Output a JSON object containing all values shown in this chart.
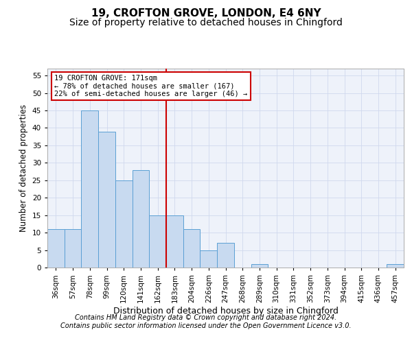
{
  "title1": "19, CROFTON GROVE, LONDON, E4 6NY",
  "title2": "Size of property relative to detached houses in Chingford",
  "xlabel": "Distribution of detached houses by size in Chingford",
  "ylabel": "Number of detached properties",
  "categories": [
    "36sqm",
    "57sqm",
    "78sqm",
    "99sqm",
    "120sqm",
    "141sqm",
    "162sqm",
    "183sqm",
    "204sqm",
    "226sqm",
    "247sqm",
    "268sqm",
    "289sqm",
    "310sqm",
    "331sqm",
    "352sqm",
    "373sqm",
    "394sqm",
    "415sqm",
    "436sqm",
    "457sqm"
  ],
  "values": [
    11,
    11,
    45,
    39,
    25,
    28,
    15,
    15,
    11,
    5,
    7,
    0,
    1,
    0,
    0,
    0,
    0,
    0,
    0,
    0,
    1
  ],
  "bar_color": "#c8daf0",
  "bar_edge_color": "#5a9fd4",
  "vline_x_index": 6.5,
  "vline_color": "#cc0000",
  "annotation_text": "19 CROFTON GROVE: 171sqm\n← 78% of detached houses are smaller (167)\n22% of semi-detached houses are larger (46) →",
  "annotation_box_facecolor": "#ffffff",
  "annotation_box_edgecolor": "#cc0000",
  "ylim": [
    0,
    57
  ],
  "yticks": [
    0,
    5,
    10,
    15,
    20,
    25,
    30,
    35,
    40,
    45,
    50,
    55
  ],
  "footer_line1": "Contains HM Land Registry data © Crown copyright and database right 2024.",
  "footer_line2": "Contains public sector information licensed under the Open Government Licence v3.0.",
  "fig_facecolor": "#ffffff",
  "plot_facecolor": "#eef2fa",
  "grid_color": "#d0d8ee",
  "title1_fontsize": 11,
  "title2_fontsize": 10,
  "xlabel_fontsize": 9,
  "ylabel_fontsize": 8.5,
  "tick_fontsize": 7.5,
  "annot_fontsize": 7.5,
  "footer_fontsize": 7
}
